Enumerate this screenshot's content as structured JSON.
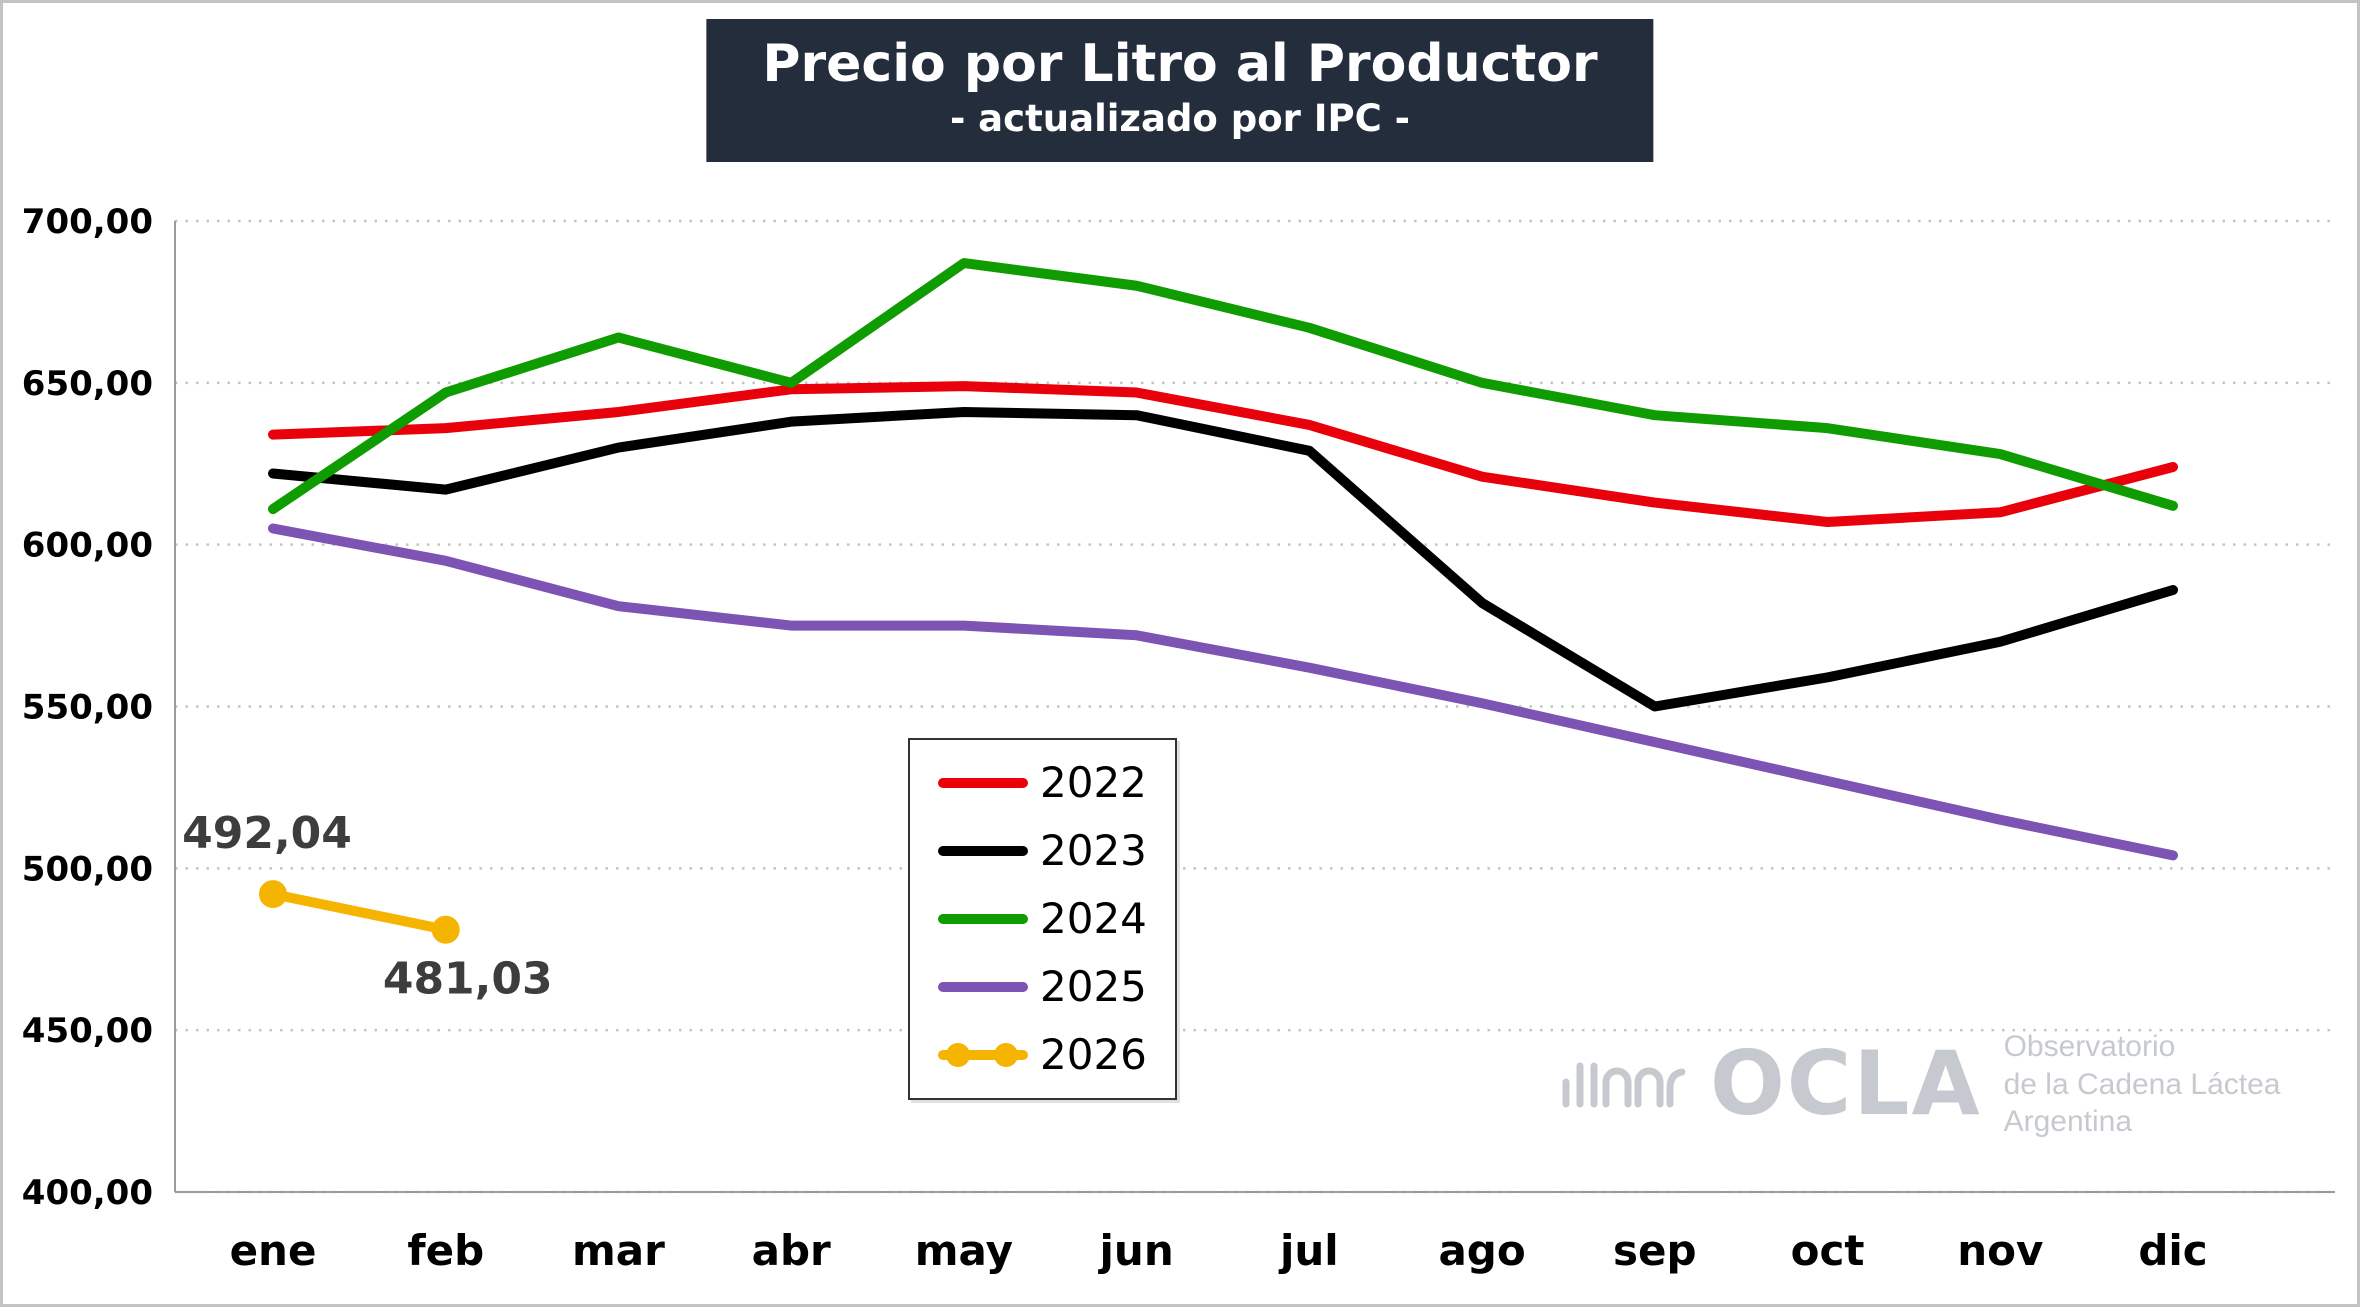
{
  "title": {
    "main": "Precio por Litro al Productor",
    "subtitle": "- actualizado por IPC -"
  },
  "logo": {
    "name": "OCLA",
    "line1": "Observatorio",
    "line2": "de la Cadena Láctea",
    "line3": "Argentina"
  },
  "chart_data": {
    "type": "line",
    "title": "Precio por Litro al Productor - actualizado por IPC -",
    "categories": [
      "ene",
      "feb",
      "mar",
      "abr",
      "may",
      "jun",
      "jul",
      "ago",
      "sep",
      "oct",
      "nov",
      "dic"
    ],
    "ylim": [
      400,
      700
    ],
    "y_tick_values": [
      700,
      650,
      600,
      550,
      500,
      450,
      400
    ],
    "y_ticks": [
      "700,00",
      "650,00",
      "600,00",
      "550,00",
      "500,00",
      "450,00",
      "400,00"
    ],
    "grid": "horizontal-dotted",
    "legend_position": "inside-center-bottom-box",
    "series": [
      {
        "name": "2022",
        "color": "#e8000b",
        "values": [
          634,
          636,
          641,
          648,
          649,
          647,
          637,
          621,
          613,
          607,
          610,
          624
        ]
      },
      {
        "name": "2023",
        "color": "#000000",
        "values": [
          622,
          617,
          630,
          638,
          641,
          640,
          629,
          582,
          550,
          559,
          570,
          586
        ]
      },
      {
        "name": "2024",
        "color": "#0f9c00",
        "values": [
          611,
          647,
          664,
          650,
          687,
          680,
          667,
          650,
          640,
          636,
          628,
          612
        ]
      },
      {
        "name": "2025",
        "color": "#7d53b3",
        "values": [
          605,
          595,
          581,
          575,
          575,
          572,
          562,
          551,
          539,
          527,
          515,
          504
        ]
      },
      {
        "name": "2026",
        "color": "#f5b400",
        "markers": true,
        "values": [
          492.04,
          481.03
        ],
        "point_labels": [
          {
            "text": "492,04",
            "position": "above"
          },
          {
            "text": "481,03",
            "position": "below"
          }
        ]
      }
    ]
  }
}
